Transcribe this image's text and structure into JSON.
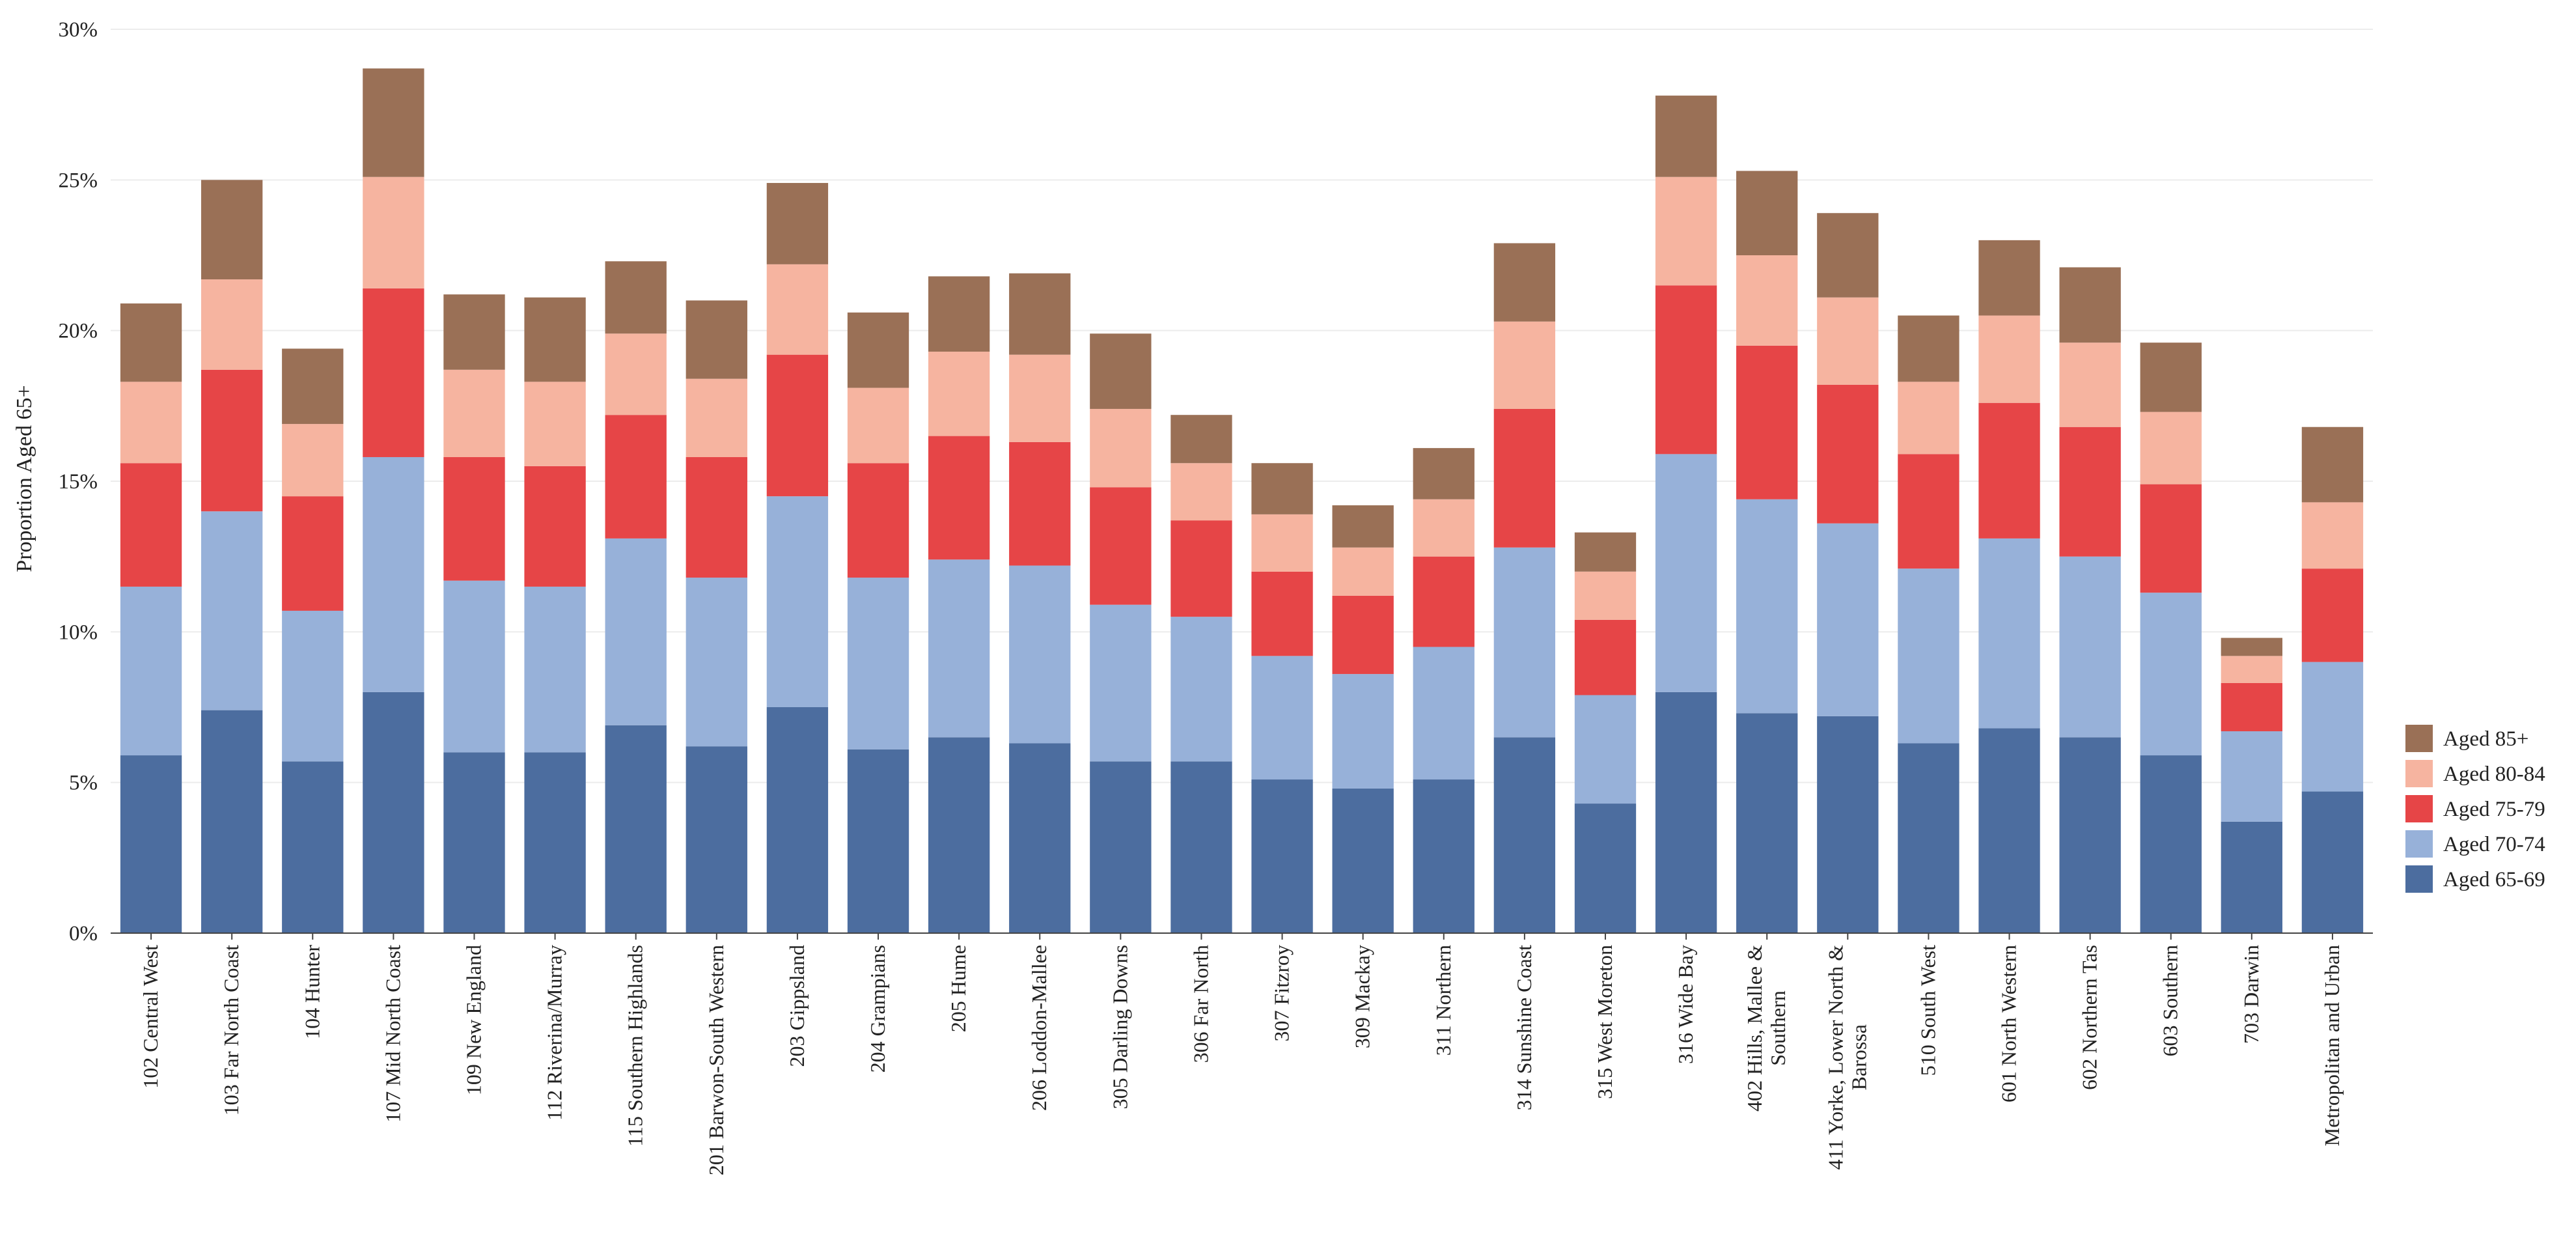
{
  "chart_data": {
    "type": "bar",
    "stacked": true,
    "title": "",
    "xlabel": "",
    "ylabel": "Proportion Aged 65+",
    "ylim": [
      0,
      30
    ],
    "yticks": [
      "0%",
      "5%",
      "10%",
      "15%",
      "20%",
      "25%",
      "30%"
    ],
    "grid": true,
    "legend_position": "right",
    "categories": [
      "102  Central West",
      "103  Far North Coast",
      "104  Hunter",
      "107  Mid North Coast",
      "109  New England",
      "112  Riverina/Murray",
      "115  Southern Highlands",
      "201  Barwon-South Western",
      "203  Gippsland",
      "204  Grampians",
      "205  Hume",
      "206  Loddon-Mallee",
      "305  Darling Downs",
      "306  Far North",
      "307  Fitzroy",
      "309  Mackay",
      "311  Northern",
      "314  Sunshine Coast",
      "315  West Moreton",
      "316  Wide Bay",
      "402  Hills, Mallee & Southern",
      "411  Yorke, Lower North & Barossa",
      "510  South West",
      "601  North Western",
      "602  Northern Tas",
      "603  Southern",
      "703  Darwin",
      "Metropolitan and Urban"
    ],
    "series": [
      {
        "name": "Aged 65-69",
        "color": "#4c6d9f",
        "values": [
          5.9,
          7.4,
          5.7,
          8.0,
          6.0,
          6.0,
          6.9,
          6.2,
          7.5,
          6.1,
          6.5,
          6.3,
          5.7,
          5.7,
          5.1,
          4.8,
          5.1,
          6.5,
          4.3,
          8.0,
          7.3,
          7.2,
          6.3,
          6.8,
          6.5,
          5.9,
          3.7,
          4.7
        ]
      },
      {
        "name": "Aged 70-74",
        "color": "#97b1d9",
        "values": [
          5.6,
          6.6,
          5.0,
          7.8,
          5.7,
          5.5,
          6.2,
          5.6,
          7.0,
          5.7,
          5.9,
          5.9,
          5.2,
          4.8,
          4.1,
          3.8,
          4.4,
          6.3,
          3.6,
          7.9,
          7.1,
          6.4,
          5.8,
          6.3,
          6.0,
          5.4,
          3.0,
          4.3
        ]
      },
      {
        "name": "Aged 75-79",
        "color": "#e64547",
        "values": [
          4.1,
          4.7,
          3.8,
          5.6,
          4.1,
          4.0,
          4.1,
          4.0,
          4.7,
          3.8,
          4.1,
          4.1,
          3.9,
          3.2,
          2.8,
          2.6,
          3.0,
          4.6,
          2.5,
          5.6,
          5.1,
          4.6,
          3.8,
          4.5,
          4.3,
          3.6,
          1.6,
          3.1
        ]
      },
      {
        "name": "Aged 80-84",
        "color": "#f6b4a0",
        "values": [
          2.7,
          3.0,
          2.4,
          3.7,
          2.9,
          2.8,
          2.7,
          2.6,
          3.0,
          2.5,
          2.8,
          2.9,
          2.6,
          1.9,
          1.9,
          1.6,
          1.9,
          2.9,
          1.6,
          3.6,
          3.0,
          2.9,
          2.4,
          2.9,
          2.8,
          2.4,
          0.9,
          2.2
        ]
      },
      {
        "name": "Aged 85+",
        "color": "#9a7056",
        "values": [
          2.6,
          3.3,
          2.5,
          3.6,
          2.5,
          2.8,
          2.4,
          2.6,
          2.7,
          2.5,
          2.5,
          2.7,
          2.5,
          1.6,
          1.7,
          1.4,
          1.7,
          2.6,
          1.3,
          2.7,
          2.8,
          2.8,
          2.2,
          2.5,
          2.5,
          2.3,
          0.6,
          2.5
        ]
      }
    ]
  }
}
